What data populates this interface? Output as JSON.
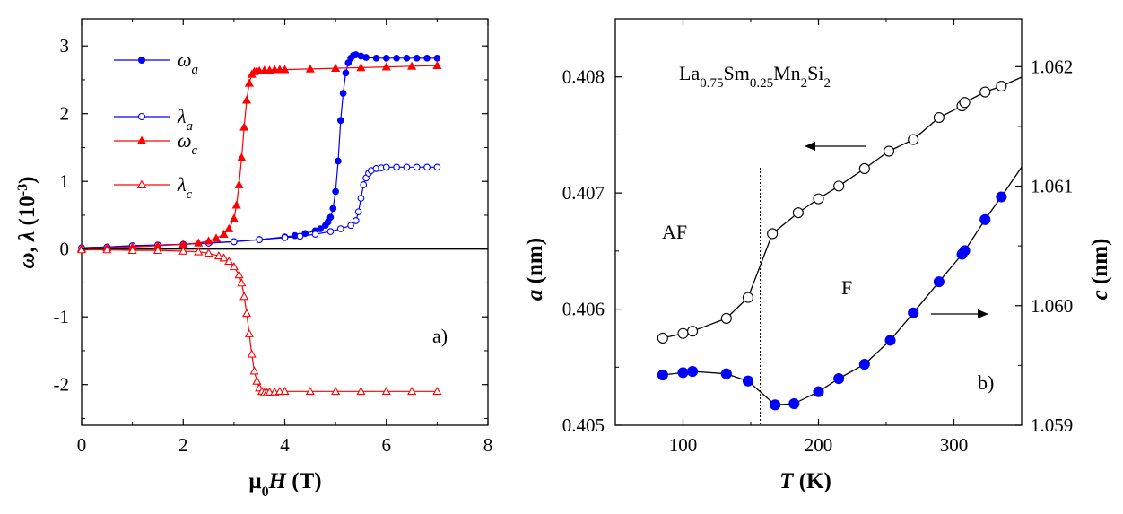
{
  "chart_data": [
    {
      "panel": "a)",
      "type": "line",
      "xlabel": {
        "main": "μ",
        "sub": "0",
        "italic": "H",
        "unit": " (T)"
      },
      "ylabel": {
        "a": "ω",
        "b": ", ",
        "c": "λ",
        "d": " (10",
        "e": "-3",
        "f": ")"
      },
      "xlim": [
        0,
        8
      ],
      "ylim": [
        -2.6,
        3.4
      ],
      "xticks": [
        0,
        2,
        4,
        6,
        8
      ],
      "yticks": [
        -2,
        -1,
        0,
        1,
        2,
        3
      ],
      "legend_placement": "top-left",
      "series": [
        {
          "name": "ω",
          "sub": "a",
          "color": "#0000ff",
          "marker": "circle-filled",
          "x": [
            0,
            0.5,
            1,
            1.5,
            2,
            2.5,
            3,
            3.5,
            4,
            4.2,
            4.4,
            4.6,
            4.7,
            4.8,
            4.85,
            4.9,
            4.95,
            5.0,
            5.05,
            5.1,
            5.15,
            5.2,
            5.25,
            5.3,
            5.35,
            5.4,
            5.5,
            5.6,
            5.8,
            6.0,
            6.2,
            6.4,
            6.6,
            6.8,
            7.0
          ],
          "y": [
            0.02,
            0.03,
            0.05,
            0.06,
            0.07,
            0.09,
            0.11,
            0.14,
            0.18,
            0.2,
            0.23,
            0.27,
            0.3,
            0.35,
            0.4,
            0.47,
            0.6,
            0.85,
            1.3,
            1.9,
            2.3,
            2.6,
            2.75,
            2.82,
            2.86,
            2.87,
            2.85,
            2.83,
            2.82,
            2.82,
            2.82,
            2.82,
            2.82,
            2.82,
            2.82
          ]
        },
        {
          "name": "λ",
          "sub": "a",
          "color": "#0000ff",
          "marker": "circle-open",
          "x": [
            0,
            0.5,
            1,
            1.5,
            2,
            2.5,
            3,
            3.5,
            4,
            4.3,
            4.6,
            4.9,
            5.1,
            5.3,
            5.4,
            5.45,
            5.5,
            5.55,
            5.6,
            5.65,
            5.7,
            5.8,
            5.9,
            6.0,
            6.2,
            6.4,
            6.6,
            6.8,
            7.0
          ],
          "y": [
            0.02,
            0.03,
            0.05,
            0.06,
            0.07,
            0.09,
            0.11,
            0.14,
            0.17,
            0.19,
            0.22,
            0.26,
            0.3,
            0.35,
            0.42,
            0.55,
            0.75,
            0.95,
            1.05,
            1.12,
            1.16,
            1.19,
            1.2,
            1.21,
            1.21,
            1.21,
            1.21,
            1.21,
            1.21
          ]
        },
        {
          "name": "ω",
          "sub": "c",
          "color": "#ff0000",
          "marker": "triangle-filled",
          "x": [
            0,
            0.5,
            1,
            1.5,
            2,
            2.3,
            2.5,
            2.65,
            2.8,
            2.9,
            3.0,
            3.05,
            3.1,
            3.15,
            3.2,
            3.25,
            3.3,
            3.35,
            3.4,
            3.45,
            3.5,
            3.6,
            3.7,
            3.8,
            3.9,
            4.0,
            4.5,
            5.0,
            5.5,
            6.0,
            6.5,
            7.0
          ],
          "y": [
            0.01,
            0.02,
            0.03,
            0.05,
            0.07,
            0.09,
            0.12,
            0.16,
            0.22,
            0.3,
            0.45,
            0.65,
            0.95,
            1.35,
            1.8,
            2.2,
            2.45,
            2.58,
            2.62,
            2.63,
            2.63,
            2.64,
            2.64,
            2.65,
            2.65,
            2.65,
            2.66,
            2.67,
            2.68,
            2.69,
            2.7,
            2.71
          ]
        },
        {
          "name": "λ",
          "sub": "c",
          "color": "#ff0000",
          "marker": "triangle-open",
          "x": [
            0,
            0.5,
            1,
            1.5,
            2,
            2.3,
            2.5,
            2.7,
            2.8,
            2.9,
            3.0,
            3.1,
            3.15,
            3.2,
            3.25,
            3.3,
            3.35,
            3.4,
            3.45,
            3.5,
            3.55,
            3.6,
            3.65,
            3.7,
            3.8,
            3.9,
            4.0,
            4.5,
            5.0,
            5.5,
            6.0,
            6.5,
            7.0
          ],
          "y": [
            -0.01,
            -0.01,
            -0.02,
            -0.02,
            -0.03,
            -0.04,
            -0.06,
            -0.1,
            -0.13,
            -0.18,
            -0.26,
            -0.38,
            -0.5,
            -0.7,
            -0.95,
            -1.25,
            -1.55,
            -1.8,
            -1.95,
            -2.05,
            -2.1,
            -2.12,
            -2.12,
            -2.11,
            -2.11,
            -2.1,
            -2.1,
            -2.1,
            -2.1,
            -2.1,
            -2.1,
            -2.1,
            -2.1
          ]
        }
      ],
      "zero_line": true
    },
    {
      "panel": "b)",
      "type": "scatter",
      "title_parts": [
        "La",
        "0.75",
        "Sm",
        "0.25",
        "Mn",
        "2",
        "Si",
        "2"
      ],
      "xlabel": {
        "italic": "T",
        "unit": " (K)"
      },
      "ylabel_left": {
        "italic": "a",
        "unit": " (nm)"
      },
      "ylabel_right": {
        "italic": "c",
        "unit": " (nm)"
      },
      "xlim": [
        50,
        350
      ],
      "ylim_left": [
        0.405,
        0.4085
      ],
      "ylim_right": [
        1.059,
        1.0624
      ],
      "xticks": [
        100,
        200,
        300
      ],
      "yticks_left": [
        0.405,
        0.406,
        0.407,
        0.408
      ],
      "yticks_right": [
        1.059,
        1.06,
        1.061,
        1.062
      ],
      "phase_boundary_T": 157,
      "phase_labels": {
        "left": "AF",
        "right": "F"
      },
      "series": [
        {
          "name": "a",
          "axis": "left",
          "color": "#000000",
          "marker": "circle-open",
          "x": [
            85,
            100,
            107,
            132,
            148,
            166,
            185,
            200,
            215,
            234,
            252,
            270,
            289,
            306,
            308,
            323,
            335
          ],
          "y": [
            0.40575,
            0.40579,
            0.40581,
            0.40592,
            0.4061,
            0.40665,
            0.40683,
            0.40695,
            0.40706,
            0.40721,
            0.40736,
            0.40746,
            0.40765,
            0.40775,
            0.40778,
            0.40787,
            0.40792
          ]
        },
        {
          "name": "c",
          "axis": "right",
          "color": "#0000ff",
          "marker": "circle-filled",
          "x": [
            85,
            100,
            107,
            132,
            148,
            168,
            182,
            200,
            215,
            234,
            253,
            270,
            289,
            306,
            308,
            323,
            335
          ],
          "y": [
            1.05942,
            1.05944,
            1.05945,
            1.05943,
            1.05937,
            1.05917,
            1.05918,
            1.05928,
            1.05939,
            1.05951,
            1.05971,
            1.05994,
            1.0602,
            1.06043,
            1.06046,
            1.06072,
            1.06091
          ]
        }
      ]
    }
  ]
}
